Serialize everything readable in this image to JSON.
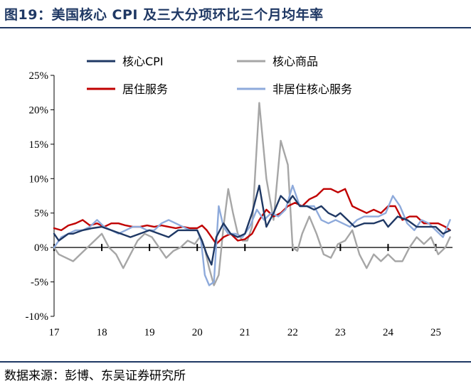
{
  "figure": {
    "title": "图19：美国核心 CPI 及三大分项环比三个月均年率",
    "source": "数据来源：彭博、东吴证券研究所"
  },
  "chart_data": {
    "type": "line",
    "title": "",
    "xlabel": "",
    "ylabel": "",
    "ylim": [
      -10,
      25
    ],
    "xlim": [
      2017.0,
      2025.35
    ],
    "y_ticks": [
      25,
      20,
      15,
      10,
      5,
      0,
      -5,
      -10
    ],
    "y_tick_labels": [
      "25%",
      "20%",
      "15%",
      "10%",
      "5%",
      "0%",
      "-5%",
      "-10%"
    ],
    "x_ticks": [
      2017,
      2018,
      2019,
      2020,
      2021,
      2022,
      2023,
      2024,
      2025
    ],
    "x_tick_labels": [
      "17",
      "18",
      "19",
      "20",
      "21",
      "22",
      "23",
      "24",
      "25"
    ],
    "grid": false,
    "legend_position": "top",
    "series": [
      {
        "name": "核心CPI",
        "color": "#1f3864",
        "x": [
          2017.0,
          2017.1,
          2017.2,
          2017.3,
          2017.4,
          2017.6,
          2017.8,
          2018.0,
          2018.2,
          2018.4,
          2018.6,
          2018.8,
          2019.0,
          2019.2,
          2019.4,
          2019.6,
          2019.8,
          2020.0,
          2020.1,
          2020.2,
          2020.3,
          2020.4,
          2020.55,
          2020.7,
          2020.85,
          2021.0,
          2021.15,
          2021.3,
          2021.45,
          2021.6,
          2021.75,
          2021.9,
          2022.0,
          2022.15,
          2022.3,
          2022.45,
          2022.6,
          2022.75,
          2022.9,
          2023.0,
          2023.15,
          2023.3,
          2023.5,
          2023.7,
          2023.9,
          2024.0,
          2024.2,
          2024.4,
          2024.6,
          2024.8,
          2025.0,
          2025.15,
          2025.3
        ],
        "values": [
          2,
          1,
          1.5,
          2,
          2,
          2.5,
          2.8,
          3,
          2.5,
          2,
          1.5,
          2,
          2.5,
          2,
          1.5,
          2.5,
          2.5,
          2.5,
          1,
          -1,
          -2.5,
          1.5,
          3.5,
          2,
          1.5,
          2,
          5,
          9,
          3,
          5,
          7.5,
          6.5,
          7.5,
          6,
          6,
          5.5,
          6,
          5,
          4.5,
          5,
          4,
          3,
          3.5,
          3.5,
          4,
          3,
          4.5,
          4,
          3,
          3,
          3,
          2,
          2.5
        ]
      },
      {
        "name": "核心商品",
        "color": "#a6a6a6",
        "x": [
          2017.0,
          2017.1,
          2017.25,
          2017.4,
          2017.55,
          2017.7,
          2017.85,
          2018.0,
          2018.15,
          2018.3,
          2018.45,
          2018.6,
          2018.75,
          2018.9,
          2019.05,
          2019.2,
          2019.35,
          2019.5,
          2019.65,
          2019.8,
          2019.95,
          2020.05,
          2020.15,
          2020.25,
          2020.35,
          2020.45,
          2020.55,
          2020.65,
          2020.75,
          2020.85,
          2020.95,
          2021.05,
          2021.15,
          2021.3,
          2021.45,
          2021.6,
          2021.75,
          2021.9,
          2022.0,
          2022.1,
          2022.2,
          2022.35,
          2022.5,
          2022.65,
          2022.8,
          2022.95,
          2023.1,
          2023.25,
          2023.4,
          2023.55,
          2023.7,
          2023.85,
          2024.0,
          2024.15,
          2024.3,
          2024.45,
          2024.6,
          2024.75,
          2024.9,
          2025.05,
          2025.2,
          2025.3
        ],
        "values": [
          0,
          -1,
          -1.5,
          -2,
          -1,
          0,
          1,
          2,
          0,
          -1,
          -3,
          -1,
          1,
          2,
          1.5,
          0,
          -1.5,
          -0.5,
          0,
          1,
          0.5,
          1.5,
          0,
          -3,
          -5.5,
          -4,
          3,
          8.5,
          5,
          2,
          1,
          1,
          3,
          21,
          10,
          4,
          15.5,
          12,
          0,
          -0.5,
          2,
          4.5,
          2,
          -1,
          -1.5,
          0.5,
          1,
          2.5,
          -1,
          -3,
          -1,
          -2,
          -1,
          -2,
          -2,
          0,
          1.5,
          0.5,
          1.5,
          -1,
          0,
          1.5
        ]
      },
      {
        "name": "居住服务",
        "color": "#c00000",
        "x": [
          2017.0,
          2017.15,
          2017.3,
          2017.45,
          2017.6,
          2017.75,
          2017.9,
          2018.05,
          2018.2,
          2018.35,
          2018.5,
          2018.65,
          2018.8,
          2018.95,
          2019.1,
          2019.25,
          2019.4,
          2019.55,
          2019.7,
          2019.85,
          2020.0,
          2020.1,
          2020.2,
          2020.3,
          2020.4,
          2020.55,
          2020.7,
          2020.85,
          2021.0,
          2021.15,
          2021.3,
          2021.45,
          2021.6,
          2021.75,
          2021.9,
          2022.05,
          2022.2,
          2022.35,
          2022.5,
          2022.65,
          2022.8,
          2022.95,
          2023.1,
          2023.25,
          2023.4,
          2023.55,
          2023.7,
          2023.85,
          2024.0,
          2024.15,
          2024.3,
          2024.45,
          2024.6,
          2024.75,
          2024.9,
          2025.05,
          2025.2,
          2025.3
        ],
        "values": [
          2.8,
          2.5,
          3.2,
          3.5,
          4.0,
          3.2,
          3.5,
          3.0,
          3.5,
          3.5,
          3.2,
          3.0,
          3.0,
          3.2,
          3.0,
          3.2,
          3.0,
          2.8,
          3.0,
          2.8,
          2.8,
          3.2,
          2.5,
          1.5,
          0.5,
          1.5,
          2.0,
          1.0,
          1.2,
          2.0,
          4.0,
          5.5,
          4.5,
          5.0,
          6.0,
          6.5,
          6.0,
          7.0,
          7.5,
          8.5,
          8.5,
          8.0,
          8.5,
          6.0,
          5.5,
          5.0,
          5.5,
          5.0,
          6.0,
          6.0,
          4.0,
          4.5,
          4.5,
          3.5,
          3.5,
          3.5,
          3.0,
          2.5
        ]
      },
      {
        "name": "非居住核心服务",
        "color": "#8eaadb",
        "x": [
          2017.0,
          2017.15,
          2017.3,
          2017.45,
          2017.6,
          2017.75,
          2017.9,
          2018.05,
          2018.2,
          2018.35,
          2018.5,
          2018.65,
          2018.8,
          2018.95,
          2019.1,
          2019.25,
          2019.4,
          2019.55,
          2019.7,
          2019.85,
          2020.0,
          2020.08,
          2020.16,
          2020.25,
          2020.35,
          2020.45,
          2020.55,
          2020.65,
          2020.8,
          2020.95,
          2021.1,
          2021.25,
          2021.4,
          2021.55,
          2021.7,
          2021.85,
          2022.0,
          2022.15,
          2022.3,
          2022.45,
          2022.6,
          2022.75,
          2022.9,
          2023.05,
          2023.2,
          2023.35,
          2023.5,
          2023.65,
          2023.8,
          2023.95,
          2024.1,
          2024.25,
          2024.4,
          2024.55,
          2024.7,
          2024.85,
          2025.0,
          2025.15,
          2025.3
        ],
        "values": [
          0,
          1.5,
          2,
          2.5,
          2.5,
          3,
          4,
          3,
          2.5,
          2,
          2.5,
          3,
          3,
          2.5,
          2.5,
          3.5,
          4,
          3.5,
          3,
          2.5,
          2.5,
          1,
          -4,
          -5.5,
          -5,
          6,
          3,
          2,
          2,
          1.5,
          3,
          5.5,
          4,
          5,
          4.5,
          5.5,
          9,
          6,
          6,
          6,
          4,
          3.5,
          4,
          3.5,
          3,
          4,
          4.5,
          4.5,
          4.5,
          5,
          7.5,
          6,
          3.5,
          2.5,
          4,
          3.5,
          2.5,
          1.5,
          4
        ]
      }
    ]
  }
}
